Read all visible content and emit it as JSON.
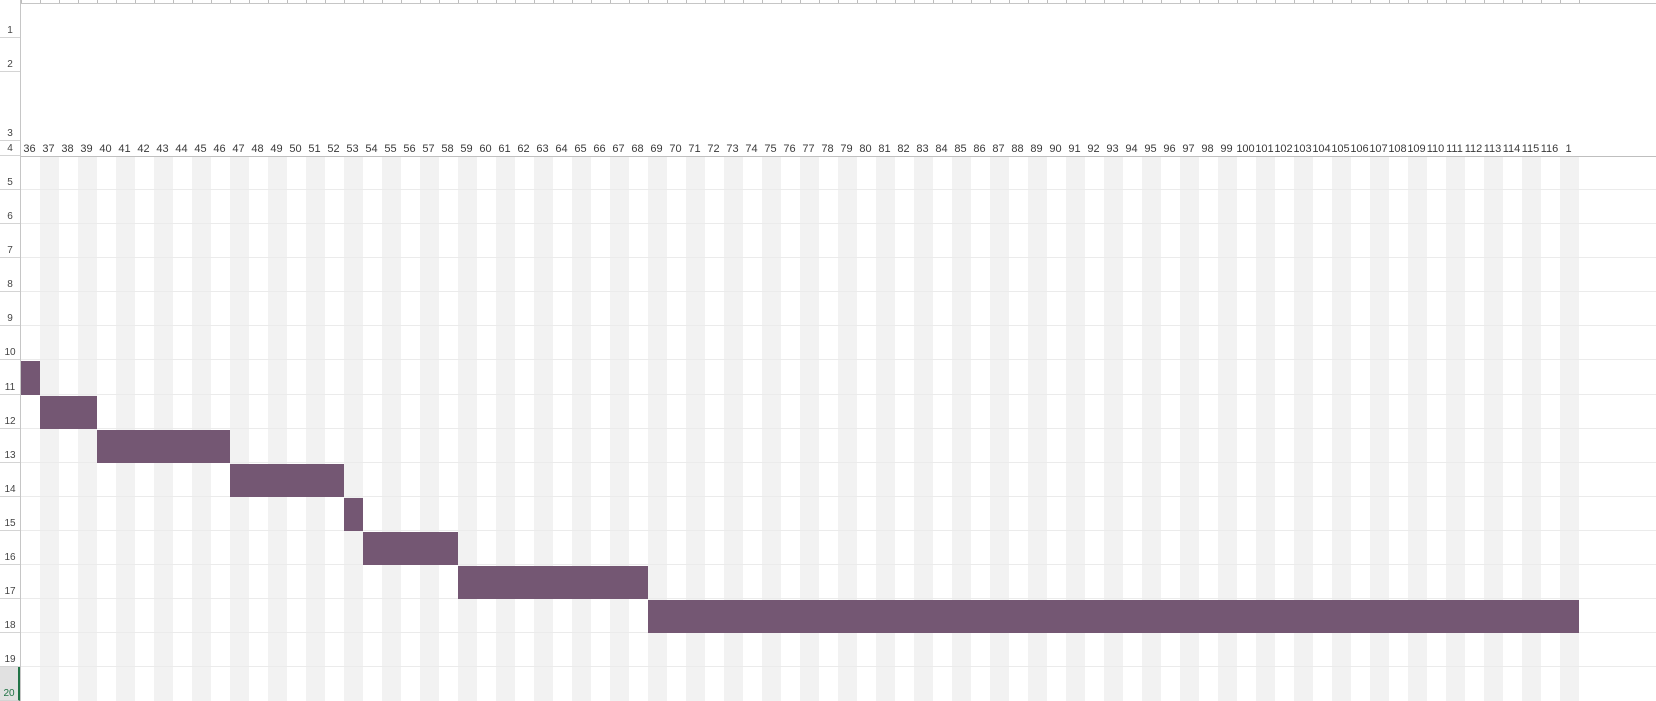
{
  "sheet": {
    "rows": [
      "1",
      "2",
      "3",
      "4",
      "5",
      "6",
      "7",
      "8",
      "9",
      "10",
      "11",
      "12",
      "13",
      "14",
      "15",
      "16",
      "17",
      "18",
      "19",
      "20"
    ],
    "selected_row": "20",
    "timeline": {
      "days": [
        "36",
        "37",
        "38",
        "39",
        "40",
        "41",
        "42",
        "43",
        "44",
        "45",
        "46",
        "47",
        "48",
        "49",
        "50",
        "51",
        "52",
        "53",
        "54",
        "55",
        "56",
        "57",
        "58",
        "59",
        "60",
        "61",
        "62",
        "63",
        "64",
        "65",
        "66",
        "67",
        "68",
        "69",
        "70",
        "71",
        "72",
        "73",
        "74",
        "75",
        "76",
        "77",
        "78",
        "79",
        "80",
        "81",
        "82",
        "83",
        "84",
        "85",
        "86",
        "87",
        "88",
        "89",
        "90",
        "91",
        "92",
        "93",
        "94",
        "95",
        "96",
        "97",
        "98",
        "99",
        "100",
        "101",
        "102",
        "103",
        "104",
        "105",
        "106",
        "107",
        "108",
        "109",
        "110",
        "111",
        "112",
        "113",
        "114",
        "115",
        "116",
        "1"
      ]
    },
    "colors": {
      "bar": "#745773",
      "shade": "#f2f2f2",
      "selected": "#217346"
    },
    "tasks": [
      {
        "row": "12",
        "start": 36,
        "end": 36
      },
      {
        "row": "13",
        "start": 37,
        "end": 39
      },
      {
        "row": "14",
        "start": 40,
        "end": 46
      },
      {
        "row": "15",
        "start": 47,
        "end": 52
      },
      {
        "row": "16",
        "start": 53,
        "end": 53
      },
      {
        "row": "17",
        "start": 54,
        "end": 58
      },
      {
        "row": "18",
        "start": 59,
        "end": 68
      },
      {
        "row": "19",
        "start": 69,
        "end": 117
      }
    ]
  }
}
